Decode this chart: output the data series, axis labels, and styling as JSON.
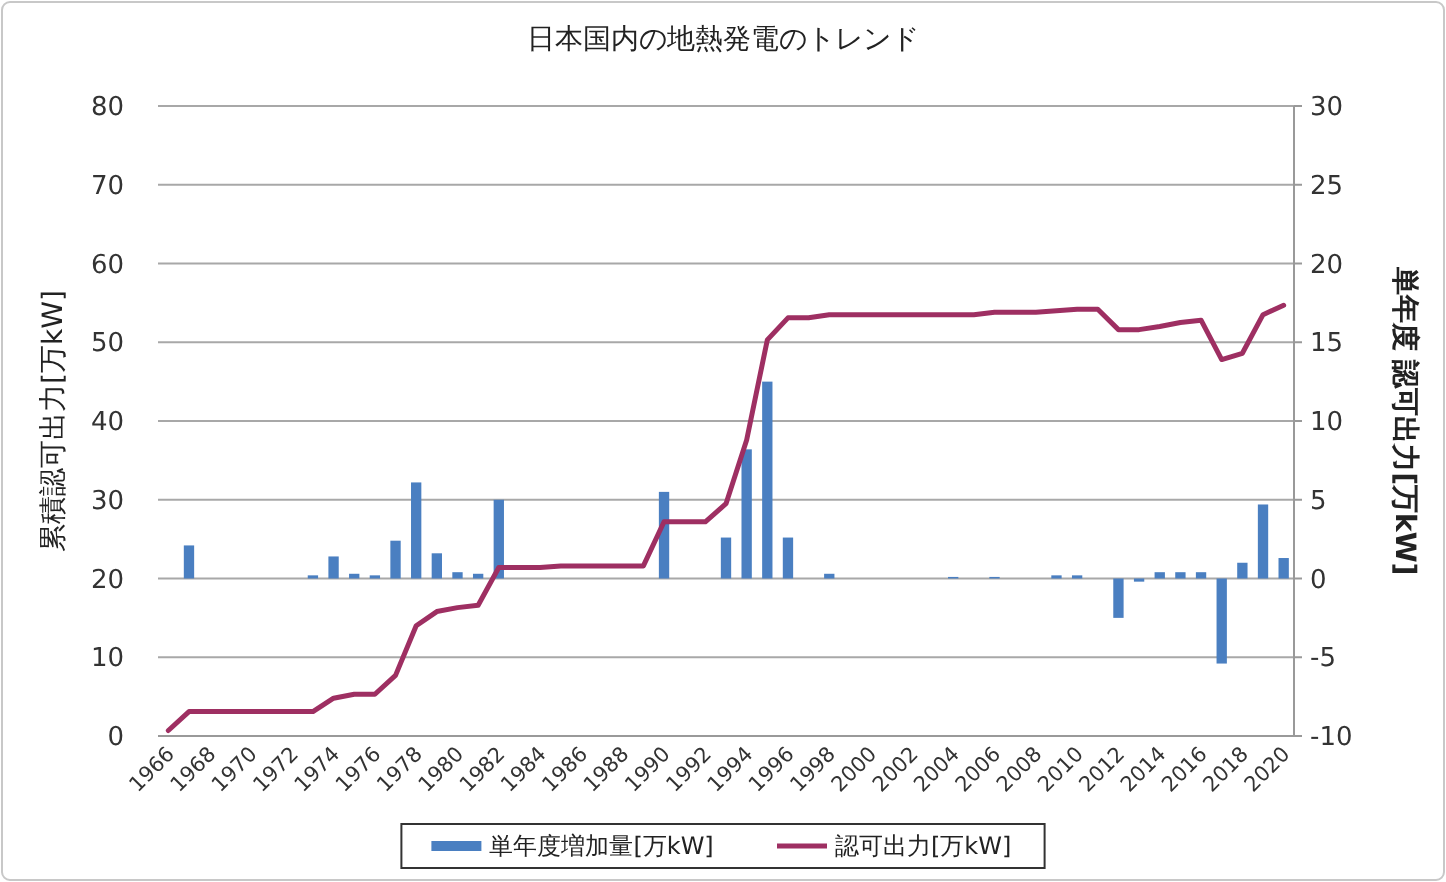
{
  "chart_data": {
    "type": "bar",
    "title": "日本国内の地熱発電のトレンド",
    "ylabel": "累積認可出力[万kW]",
    "y2label": "単年度 認可出力[万kW]",
    "categories": [
      "1966",
      null,
      "1968",
      null,
      "1970",
      null,
      "1972",
      null,
      "1974",
      null,
      "1976",
      null,
      "1978",
      null,
      "1980",
      null,
      "1982",
      null,
      "1984",
      null,
      "1986",
      null,
      "1988",
      null,
      "1990",
      null,
      "1992",
      null,
      "1994",
      null,
      "1996",
      null,
      "1998",
      null,
      "2000",
      null,
      "2002",
      null,
      "2004",
      null,
      "2006",
      null,
      "2008",
      null,
      "2010",
      null,
      "2012",
      null,
      "2014",
      null,
      "2016",
      null,
      "2018",
      null,
      "2020"
    ],
    "series": [
      {
        "name": "単年度増加量[万kW]",
        "axis": "y2",
        "color": "#4a7fc1",
        "values": [
          0,
          2.1,
          0,
          0,
          0,
          0,
          0,
          0.2,
          1.4,
          0.3,
          0.2,
          2.4,
          6.1,
          1.6,
          0.4,
          0.3,
          5.0,
          0,
          0,
          0,
          0,
          0,
          0,
          0,
          5.5,
          0,
          0,
          2.6,
          8.2,
          12.5,
          2.6,
          0,
          0.3,
          0,
          0,
          0,
          0,
          0,
          0.1,
          0,
          0.1,
          0,
          0,
          0.2,
          0.2,
          0,
          -2.5,
          -0.2,
          0.4,
          0.4,
          0.4,
          -5.4,
          1.0,
          4.7,
          1.3
        ]
      },
      {
        "name": "認可出力[万kW]",
        "type": "line",
        "color": "#9e2f62",
        "values": [
          0.7,
          3.1,
          3.1,
          3.1,
          3.1,
          3.1,
          3.1,
          3.1,
          4.8,
          5.3,
          5.3,
          7.7,
          14.0,
          15.8,
          16.3,
          16.6,
          21.4,
          21.4,
          21.4,
          21.6,
          21.6,
          21.6,
          21.6,
          21.6,
          27.2,
          27.2,
          27.2,
          29.5,
          37.6,
          50.3,
          53.1,
          53.1,
          53.5,
          53.5,
          53.5,
          53.5,
          53.5,
          53.5,
          53.5,
          53.5,
          53.8,
          53.8,
          53.8,
          54.0,
          54.2,
          54.2,
          51.6,
          51.6,
          52.0,
          52.5,
          52.8,
          47.8,
          48.6,
          53.5,
          54.7
        ]
      }
    ],
    "ylim": [
      0,
      80
    ],
    "yticks": [
      0,
      10,
      20,
      30,
      40,
      50,
      60,
      70,
      80
    ],
    "y2lim": [
      -10,
      30
    ],
    "y2ticks": [
      -10,
      -5,
      0,
      5,
      10,
      15,
      20,
      25,
      30
    ],
    "grid": "y",
    "legend": "bottom"
  }
}
